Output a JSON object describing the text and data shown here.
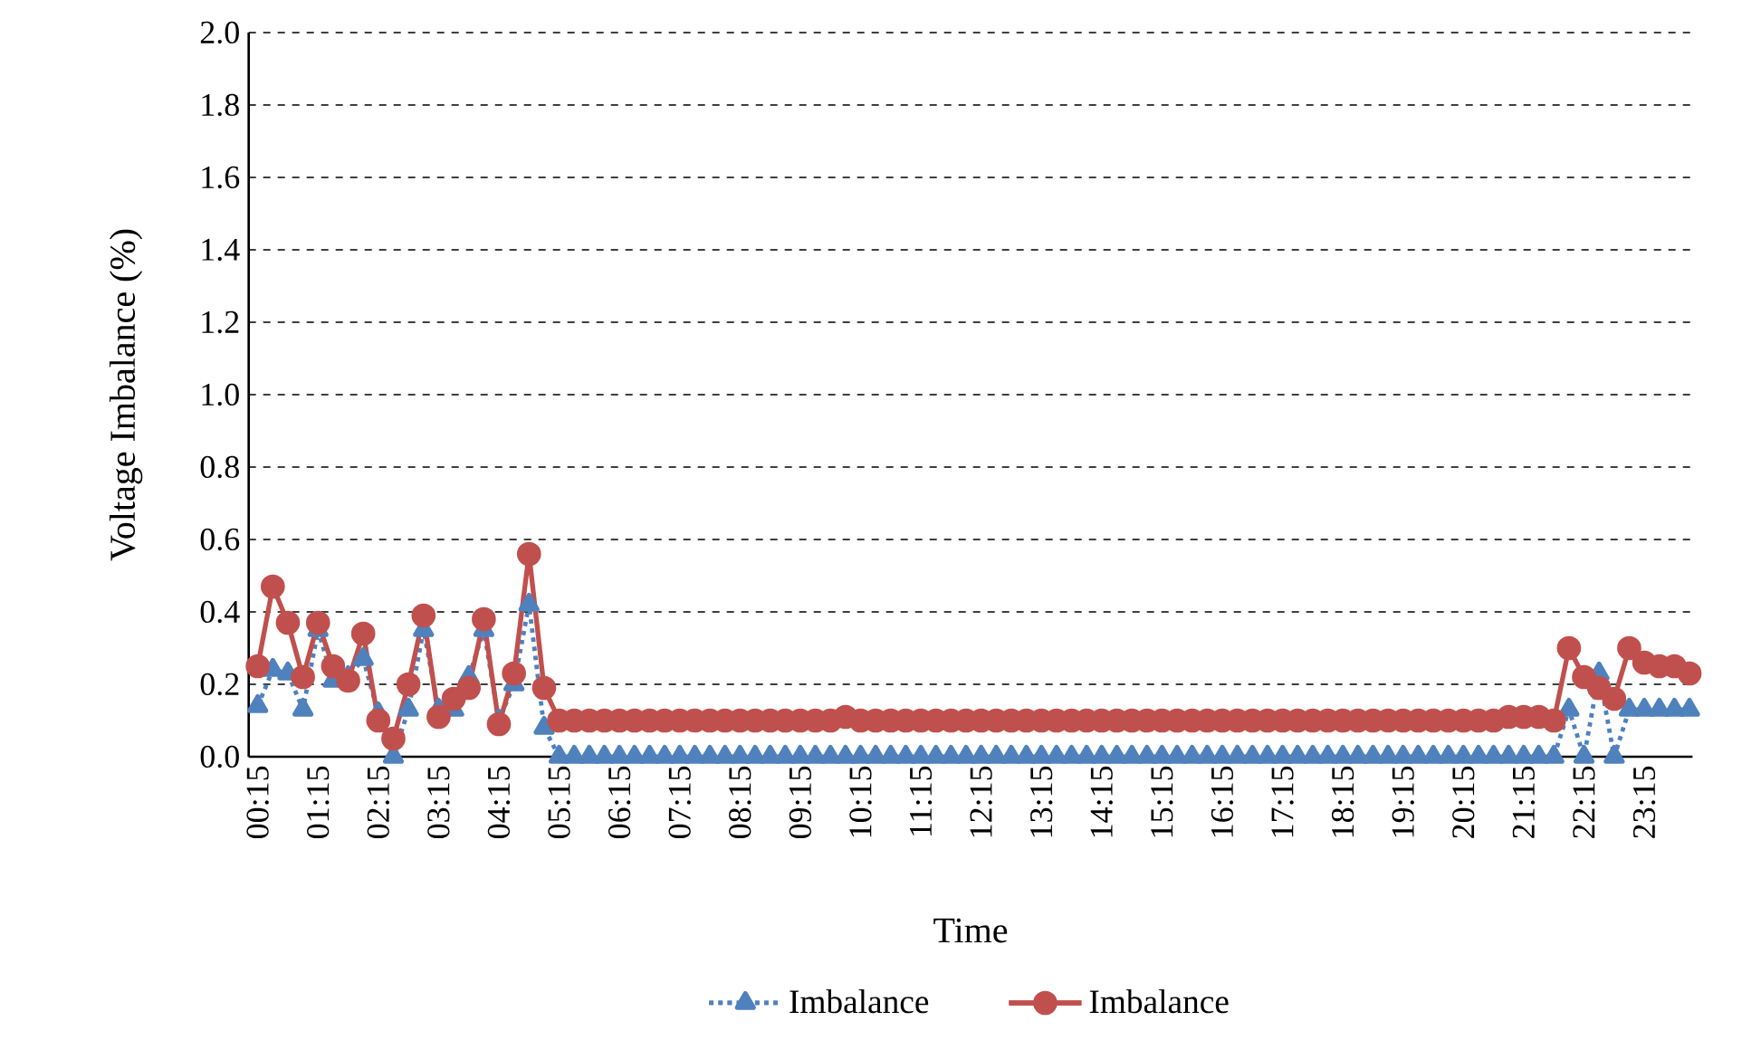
{
  "chart_data": {
    "type": "line",
    "xlabel": "Time",
    "ylabel": "Voltage Imbalance (%)",
    "categories": [
      "00:15",
      null,
      null,
      null,
      "01:15",
      null,
      null,
      null,
      "02:15",
      null,
      null,
      null,
      "03:15",
      null,
      null,
      null,
      "04:15",
      null,
      null,
      null,
      "05:15",
      null,
      null,
      null,
      "06:15",
      null,
      null,
      null,
      "07:15",
      null,
      null,
      null,
      "08:15",
      null,
      null,
      null,
      "09:15",
      null,
      null,
      null,
      "10:15",
      null,
      null,
      null,
      "11:15",
      null,
      null,
      null,
      "12:15",
      null,
      null,
      null,
      "13:15",
      null,
      null,
      null,
      "14:15",
      null,
      null,
      null,
      "15:15",
      null,
      null,
      null,
      "16:15",
      null,
      null,
      null,
      "17:15",
      null,
      null,
      null,
      "18:15",
      null,
      null,
      null,
      "19:15",
      null,
      null,
      null,
      "20:15",
      null,
      null,
      null,
      "21:15",
      null,
      null,
      null,
      "22:15",
      null,
      null,
      null,
      "23:15",
      null,
      null,
      null
    ],
    "series": [
      {
        "name": "Imbalance",
        "color": "#4f81bd",
        "marker": "triangle",
        "line_style": "dotted",
        "values": [
          0.14,
          0.24,
          0.23,
          0.13,
          0.35,
          0.21,
          0.22,
          0.27,
          0.12,
          0.0,
          0.13,
          0.35,
          0.13,
          0.13,
          0.22,
          0.35,
          0.1,
          0.2,
          0.42,
          0.08,
          0,
          0,
          0,
          0,
          0,
          0,
          0,
          0,
          0,
          0,
          0,
          0,
          0,
          0,
          0,
          0,
          0,
          0,
          0,
          0,
          0,
          0,
          0,
          0,
          0,
          0,
          0,
          0,
          0,
          0,
          0,
          0,
          0,
          0,
          0,
          0,
          0,
          0,
          0,
          0,
          0,
          0,
          0,
          0,
          0,
          0,
          0,
          0,
          0,
          0,
          0,
          0,
          0,
          0,
          0,
          0,
          0,
          0,
          0,
          0,
          0,
          0,
          0,
          0,
          0,
          0,
          0,
          0.13,
          0,
          0.23,
          0,
          0.13,
          0.13,
          0.13,
          0.13,
          0.13
        ]
      },
      {
        "name": "Imbalance",
        "color": "#c0504d",
        "marker": "circle",
        "line_style": "solid",
        "values": [
          0.25,
          0.47,
          0.37,
          0.22,
          0.37,
          0.25,
          0.21,
          0.34,
          0.1,
          0.05,
          0.2,
          0.39,
          0.11,
          0.16,
          0.19,
          0.38,
          0.09,
          0.23,
          0.56,
          0.19,
          0.1,
          0.1,
          0.1,
          0.1,
          0.1,
          0.1,
          0.1,
          0.1,
          0.1,
          0.1,
          0.1,
          0.1,
          0.1,
          0.1,
          0.1,
          0.1,
          0.1,
          0.1,
          0.1,
          0.11,
          0.1,
          0.1,
          0.1,
          0.1,
          0.1,
          0.1,
          0.1,
          0.1,
          0.1,
          0.1,
          0.1,
          0.1,
          0.1,
          0.1,
          0.1,
          0.1,
          0.1,
          0.1,
          0.1,
          0.1,
          0.1,
          0.1,
          0.1,
          0.1,
          0.1,
          0.1,
          0.1,
          0.1,
          0.1,
          0.1,
          0.1,
          0.1,
          0.1,
          0.1,
          0.1,
          0.1,
          0.1,
          0.1,
          0.1,
          0.1,
          0.1,
          0.1,
          0.1,
          0.11,
          0.11,
          0.11,
          0.1,
          0.3,
          0.22,
          0.19,
          0.16,
          0.3,
          0.26,
          0.25,
          0.25,
          0.23
        ]
      }
    ],
    "ylim": [
      0,
      2
    ],
    "yticks": [
      {
        "value": 0,
        "label": "0.0"
      },
      {
        "value": 0.2,
        "label": "0.2"
      },
      {
        "value": 0.4,
        "label": "0.4"
      },
      {
        "value": 0.6,
        "label": "0.6"
      },
      {
        "value": 0.8,
        "label": "0.8"
      },
      {
        "value": 1,
        "label": "1.0"
      },
      {
        "value": 1.2,
        "label": "1.2"
      },
      {
        "value": 1.4,
        "label": "1.4"
      },
      {
        "value": 1.6,
        "label": "1.6"
      },
      {
        "value": 1.8,
        "label": "1.8"
      },
      {
        "value": 2,
        "label": "2.0"
      }
    ],
    "grid": "y",
    "legend": "bottom"
  }
}
